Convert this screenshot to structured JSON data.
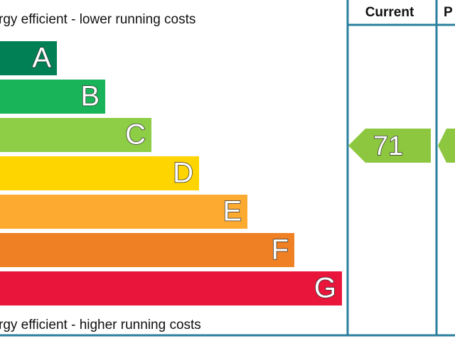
{
  "top_caption": "rgy efficient - lower running costs",
  "bottom_caption": "rgy efficient - higher running costs",
  "columns": [
    "Current",
    "P"
  ],
  "bands": [
    {
      "letter": "A",
      "color": "#008054"
    },
    {
      "letter": "B",
      "color": "#19b459"
    },
    {
      "letter": "C",
      "color": "#8dce46"
    },
    {
      "letter": "D",
      "color": "#ffd500"
    },
    {
      "letter": "E",
      "color": "#fcaa30"
    },
    {
      "letter": "F",
      "color": "#ef8023"
    },
    {
      "letter": "G",
      "color": "#e9153b"
    }
  ],
  "current": {
    "value": 71,
    "color": "#8dc63f"
  }
}
